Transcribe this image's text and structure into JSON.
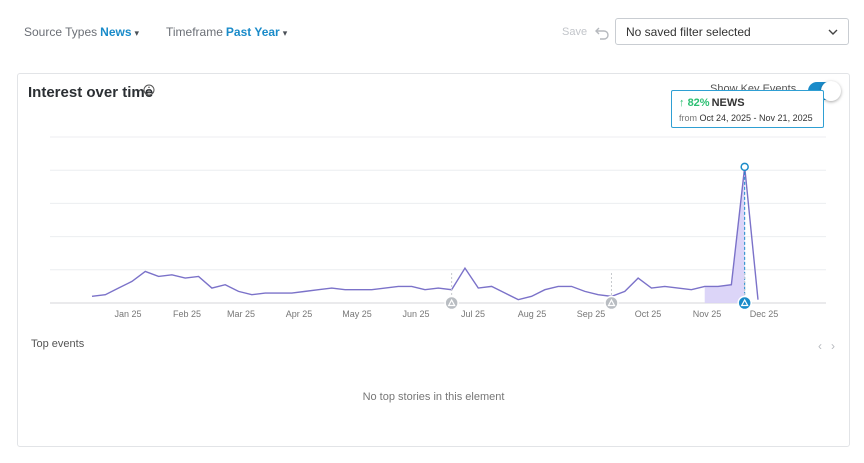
{
  "filters": {
    "source_types": {
      "label": "Source Types",
      "value": "News"
    },
    "timeframe": {
      "label": "Timeframe",
      "value": "Past Year"
    }
  },
  "toolbar": {
    "save_label": "Save",
    "undo_icon": "undo-icon"
  },
  "saved_filter": {
    "value": "No saved filter selected"
  },
  "card": {
    "title": "Interest over time",
    "show_key_events_label": "Show Key Events",
    "show_key_events_on": true,
    "tooltip": {
      "percent": "82%",
      "source": "NEWS",
      "from_label": "from",
      "range": "Oct 24, 2025 - Nov 21, 2025"
    },
    "top_events_label": "Top events",
    "empty_message": "No top stories in this element"
  },
  "colors": {
    "accent": "#1a8bc9",
    "line": "#7b72c9",
    "area": "#d8d0f7",
    "up": "#2bbf72"
  },
  "chart_data": {
    "type": "line",
    "title": "",
    "xlabel": "",
    "ylabel": "",
    "ylim": [
      0,
      100
    ],
    "grid": true,
    "x_tick_labels": [
      "Jan 25",
      "Feb 25",
      "Mar 25",
      "Apr 25",
      "May 25",
      "Jun 25",
      "Jul 25",
      "Aug 25",
      "Sep 25",
      "Oct 25",
      "Nov 25",
      "Dec 25"
    ],
    "series": [
      {
        "values": [
          4,
          5,
          9,
          13,
          19,
          16,
          17,
          15,
          16,
          9,
          11,
          7,
          5,
          6,
          6,
          6,
          7,
          8,
          9,
          8,
          8,
          8,
          9,
          10,
          10,
          8,
          9,
          8,
          21,
          9,
          10,
          6,
          2,
          4,
          8,
          10,
          10,
          7,
          5,
          4,
          7,
          15,
          9,
          10,
          9,
          8,
          10,
          10,
          11,
          82,
          2
        ]
      }
    ],
    "highlight_range": [
      46,
      49
    ],
    "key_event_markers": [
      27,
      39,
      49
    ]
  }
}
